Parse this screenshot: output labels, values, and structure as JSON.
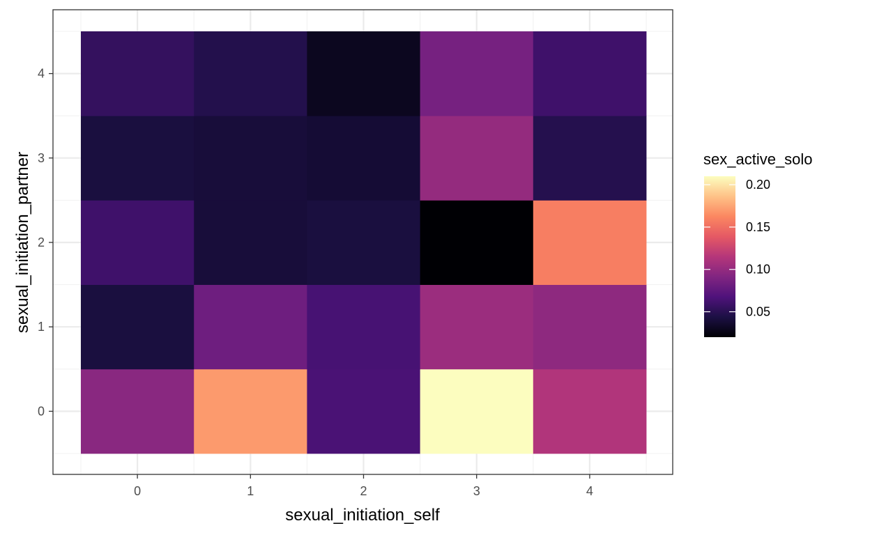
{
  "chart_data": {
    "type": "heatmap",
    "xlabel": "sexual_initiation_self",
    "ylabel": "sexual_initiation_partner",
    "x_categories": [
      "0",
      "1",
      "2",
      "3",
      "4"
    ],
    "y_categories": [
      "0",
      "1",
      "2",
      "3",
      "4"
    ],
    "legend": {
      "title": "sex_active_solo",
      "breaks": [
        0.05,
        0.1,
        0.15,
        0.2
      ],
      "break_labels": [
        "0.05",
        "0.10",
        "0.15",
        "0.20"
      ],
      "range": [
        0.02,
        0.21
      ],
      "position": "right"
    },
    "palette": [
      "#000004",
      "#1c1044",
      "#4f127b",
      "#812581",
      "#b5367a",
      "#e55964",
      "#fb8761",
      "#fec287",
      "#fcfdbf"
    ],
    "values": [
      [
        0.095,
        0.17,
        0.065,
        0.21,
        0.113
      ],
      [
        0.042,
        0.082,
        0.064,
        0.103,
        0.097
      ],
      [
        0.06,
        0.04,
        0.042,
        0.02,
        0.158
      ],
      [
        0.042,
        0.04,
        0.038,
        0.1,
        0.048
      ],
      [
        0.055,
        0.047,
        0.03,
        0.086,
        0.06
      ]
    ],
    "grid": true,
    "panel_border": true
  }
}
